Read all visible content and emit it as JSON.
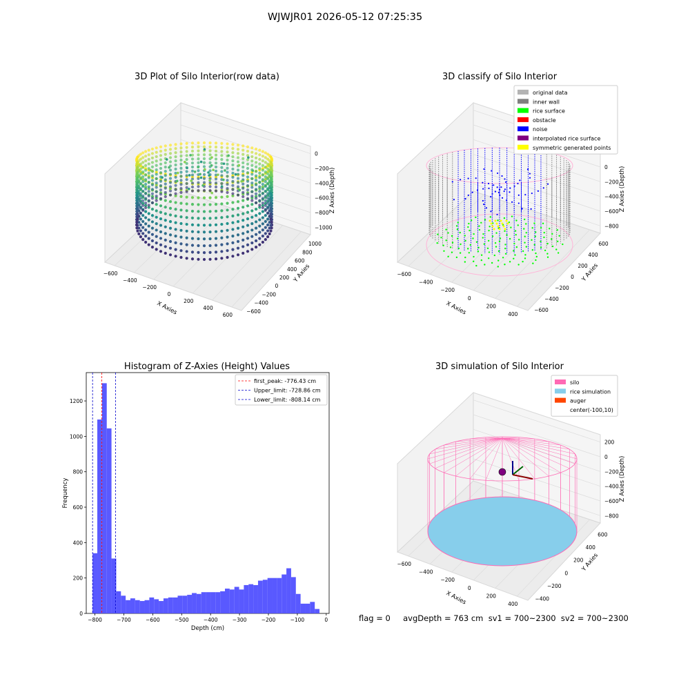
{
  "suptitle": "WJWJR01 2026-05-12 07:25:35",
  "footer": "flag = 0     avgDepth = 763 cm  sv1 = 700~2300  sv2 = 700~2300",
  "chart_data": [
    {
      "type": "scatter",
      "title": "3D Plot of Silo Interior(row data)",
      "xlabel": "X Axies",
      "ylabel": "Y Axies",
      "zlabel": "Z Axies (Depth)",
      "x_ticks": [
        -600,
        -400,
        -200,
        0,
        200,
        400,
        600
      ],
      "y_ticks": [
        -600,
        -400,
        -200,
        0,
        200,
        400,
        600,
        800,
        1000
      ],
      "z_ticks": [
        0,
        -200,
        -400,
        -600,
        -800,
        -1000
      ],
      "colormap": "viridis",
      "series": [
        {
          "points": [
            [
              -500,
              0,
              -200
            ],
            [
              -400,
              300,
              -150
            ],
            [
              0,
              450,
              -120
            ],
            [
              400,
              300,
              -150
            ],
            [
              500,
              0,
              -200
            ],
            [
              400,
              -300,
              -250
            ],
            [
              0,
              -450,
              -300
            ],
            [
              -400,
              -300,
              -250
            ],
            [
              -500,
              0,
              -1000
            ],
            [
              0,
              450,
              -1000
            ],
            [
              500,
              0,
              -1000
            ],
            [
              0,
              -450,
              -1050
            ],
            [
              -100,
              10,
              -400
            ]
          ]
        }
      ]
    },
    {
      "type": "scatter",
      "title": "3D classify of Silo Interior",
      "xlabel": "X Axies",
      "ylabel": "Y Axies",
      "zlabel": "Z Axies (Depth)",
      "x_ticks": [
        -600,
        -400,
        -200,
        0,
        200,
        400
      ],
      "y_ticks": [
        -600,
        -400,
        -200,
        0,
        200,
        400,
        600
      ],
      "z_ticks": [
        200,
        0,
        -200,
        -400,
        -600,
        -800
      ],
      "legend_position": "top-right",
      "legend": [
        {
          "label": "original data",
          "color": "#b4b4b4"
        },
        {
          "label": "inner wall",
          "color": "#808080"
        },
        {
          "label": "rice surface",
          "color": "#00ff00"
        },
        {
          "label": "obstacle",
          "color": "#ff0000"
        },
        {
          "label": "noise",
          "color": "#0000ff"
        },
        {
          "label": "interpolated rice surface",
          "color": "#800080"
        },
        {
          "label": "symmetric generated points",
          "color": "#ffff00"
        }
      ]
    },
    {
      "type": "bar",
      "title": "Histogram of Z-Axies (Height) Values",
      "xlabel": "Depth (cm)",
      "ylabel": "Frequency",
      "xlim": [
        -830,
        10
      ],
      "ylim": [
        0,
        1360
      ],
      "x_ticks": [
        -800,
        -700,
        -600,
        -500,
        -400,
        -300,
        -200,
        -100,
        0
      ],
      "y_ticks": [
        0,
        200,
        400,
        600,
        800,
        1000,
        1200
      ],
      "bin_width": 16.35,
      "bin_start": -808.14,
      "values": [
        340,
        1095,
        1300,
        1045,
        310,
        125,
        100,
        75,
        85,
        75,
        70,
        75,
        90,
        80,
        70,
        85,
        90,
        90,
        100,
        100,
        105,
        115,
        110,
        120,
        120,
        120,
        120,
        125,
        140,
        135,
        150,
        135,
        160,
        165,
        160,
        185,
        190,
        200,
        200,
        200,
        220,
        255,
        205,
        110,
        55,
        55,
        65,
        25
      ],
      "bar_color": "#5050ff",
      "vlines": [
        {
          "x": -776.43,
          "color": "#ff0000",
          "label": "first_peak: -776.43 cm"
        },
        {
          "x": -728.86,
          "color": "#0000cc",
          "label": "Upper_limit: -728.86 cm"
        },
        {
          "x": -808.14,
          "color": "#0000cc",
          "label": "Lower_limit: -808.14 cm"
        }
      ],
      "legend_position": "top-right"
    },
    {
      "type": "scatter",
      "title": "3D simulation of Silo Interior",
      "xlabel": "X Axies",
      "ylabel": "Y Axies",
      "zlabel": "Z Axies (Depth)",
      "x_ticks": [
        -600,
        -400,
        -200,
        0,
        200,
        400
      ],
      "y_ticks": [
        -400,
        -200,
        0,
        200,
        400,
        600
      ],
      "z_ticks": [
        200,
        0,
        -200,
        -400,
        -600,
        -800
      ],
      "legend_position": "top-right",
      "legend": [
        {
          "label": "silo",
          "color": "#ff69b4"
        },
        {
          "label": "rice simulation",
          "color": "#87ceeb"
        },
        {
          "label": "auger",
          "color": "#ff4500"
        },
        {
          "label": "center(-100,10)",
          "color": "#ffffff"
        }
      ]
    }
  ]
}
